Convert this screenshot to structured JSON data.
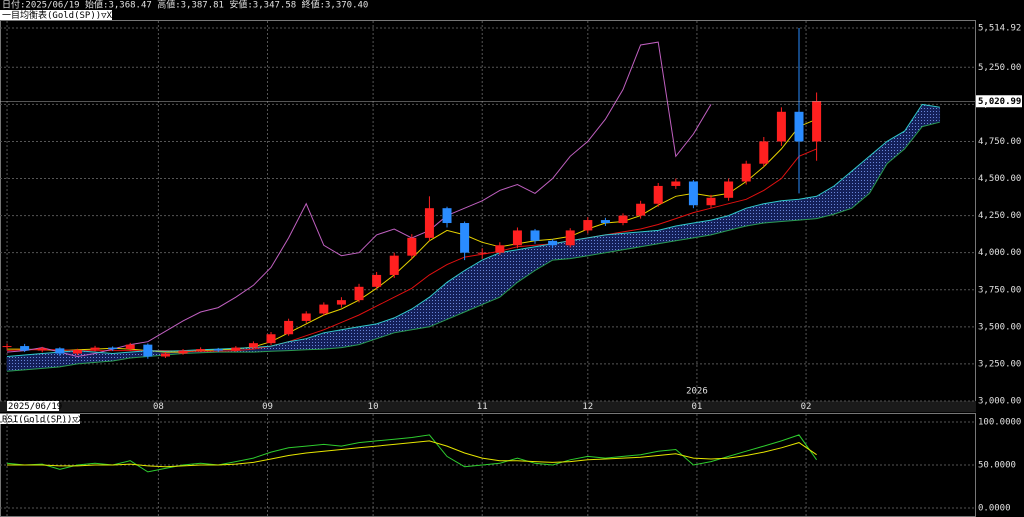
{
  "chart_data": [
    {
      "type": "candlestick",
      "subtitle": "日付:2025/06/19 始値:3,368.47 高値:3,387.81 安値:3,347.58 終値:3,370.40",
      "title": "一目均衡表(Gold(SP))▽X",
      "x_year_label": "2026",
      "up_color": "#ff2020",
      "down_color": "#2a8cff",
      "cloud_color": "#1a2a70",
      "x": [
        0,
        5,
        10,
        15,
        20,
        25,
        30,
        35,
        40,
        45,
        50,
        55,
        60,
        65,
        70,
        75,
        80,
        85,
        90,
        95,
        100,
        105,
        110,
        115,
        120,
        125,
        130,
        135,
        140,
        145,
        150,
        155,
        160,
        165,
        170,
        175,
        180,
        185,
        190,
        195,
        200,
        205,
        210,
        215,
        220,
        225,
        230,
        235,
        240,
        245,
        250,
        255,
        260,
        265
      ],
      "open": [
        3368.47,
        3370.4,
        3340,
        3355,
        3320,
        3345,
        3360,
        3350,
        3380,
        3300,
        3320,
        3340,
        3350,
        3340,
        3360,
        3390,
        3450,
        3540,
        3590,
        3650,
        3680,
        3770,
        3850,
        3980,
        4100,
        4300,
        4200,
        4000,
        4000,
        4050,
        4150,
        4080,
        4050,
        4150,
        4220,
        4200,
        4250,
        4330,
        4450,
        4480,
        4320,
        4370,
        4480,
        4600,
        4750,
        4950,
        4750,
        null,
        null,
        null,
        null,
        null,
        null,
        null
      ],
      "high": [
        3387.81,
        3385,
        3365,
        3362,
        3352,
        3372,
        3368,
        3392,
        3388,
        3330,
        3350,
        3362,
        3358,
        3370,
        3402,
        3465,
        3555,
        3605,
        3665,
        3700,
        3790,
        3870,
        4000,
        4125,
        4380,
        4310,
        4210,
        4030,
        4070,
        4170,
        4160,
        4090,
        4165,
        4240,
        4235,
        4265,
        4350,
        4470,
        4500,
        4490,
        4390,
        4500,
        4620,
        4780,
        4980,
        5514.92,
        5080,
        null,
        null,
        null,
        null,
        null,
        null,
        null
      ],
      "low": [
        3347.58,
        3330,
        3328,
        3305,
        3310,
        3335,
        3338,
        3340,
        3285,
        3290,
        3312,
        3330,
        3330,
        3332,
        3350,
        3378,
        3440,
        3525,
        3575,
        3630,
        3665,
        3755,
        3830,
        3960,
        4080,
        4170,
        3950,
        3960,
        3985,
        4030,
        4060,
        4030,
        4035,
        4130,
        4180,
        4185,
        4230,
        4310,
        4430,
        4300,
        4300,
        4350,
        4460,
        4580,
        4720,
        4400,
        4620,
        null,
        null,
        null,
        null,
        null,
        null,
        null
      ],
      "close": [
        3370.4,
        3340,
        3355,
        3320,
        3345,
        3360,
        3350,
        3380,
        3300,
        3320,
        3340,
        3350,
        3340,
        3360,
        3390,
        3450,
        3540,
        3590,
        3650,
        3680,
        3770,
        3850,
        3980,
        4100,
        4300,
        4200,
        4000,
        4000,
        4050,
        4150,
        4080,
        4050,
        4150,
        4220,
        4200,
        4250,
        4330,
        4450,
        4480,
        4320,
        4370,
        4480,
        4600,
        4750,
        4950,
        4750,
        5020.99,
        null,
        null,
        null,
        null,
        null,
        null,
        null
      ],
      "series": [
        {
          "color": "#e6d200",
          "values": [
            3350,
            3350,
            3345,
            3340,
            3345,
            3350,
            3355,
            3350,
            3340,
            3330,
            3330,
            3340,
            3345,
            3350,
            3365,
            3400,
            3460,
            3520,
            3580,
            3620,
            3680,
            3760,
            3850,
            3960,
            4080,
            4150,
            4120,
            4070,
            4040,
            4060,
            4080,
            4090,
            4110,
            4160,
            4200,
            4210,
            4250,
            4320,
            4380,
            4400,
            4380,
            4400,
            4480,
            4580,
            4700,
            4850,
            4900,
            null,
            null,
            null,
            null,
            null,
            null,
            null
          ]
        },
        {
          "color": "#e01010",
          "values": [
            3340,
            3345,
            3345,
            3345,
            3340,
            3340,
            3340,
            3340,
            3340,
            3340,
            3335,
            3335,
            3335,
            3340,
            3350,
            3370,
            3400,
            3440,
            3480,
            3530,
            3580,
            3640,
            3700,
            3760,
            3850,
            3920,
            3970,
            3990,
            4010,
            4040,
            4050,
            4060,
            4080,
            4100,
            4120,
            4140,
            4160,
            4190,
            4230,
            4270,
            4300,
            4330,
            4360,
            4420,
            4500,
            4650,
            4700,
            null,
            null,
            null,
            null,
            null,
            null,
            null
          ]
        },
        {
          "color": "#c060c0",
          "values": [
            3330,
            3340,
            3360,
            3330,
            3300,
            3320,
            3350,
            3380,
            3400,
            3470,
            3540,
            3600,
            3630,
            3700,
            3780,
            3900,
            4100,
            4330,
            4050,
            3980,
            4000,
            4120,
            4160,
            4100,
            4150,
            4250,
            4300,
            4350,
            4420,
            4460,
            4400,
            4500,
            4650,
            4750,
            4900,
            5100,
            5400,
            5420,
            4650,
            4800,
            5000,
            null,
            null,
            null,
            null,
            null,
            null,
            null,
            null,
            null,
            null,
            null,
            null,
            null
          ]
        },
        {
          "color": "#30c8c8",
          "values": [
            3300,
            3310,
            3320,
            3330,
            3340,
            3330,
            3320,
            3330,
            3340,
            3335,
            3340,
            3345,
            3350,
            3355,
            3360,
            3370,
            3400,
            3420,
            3460,
            3480,
            3500,
            3520,
            3560,
            3620,
            3700,
            3800,
            3880,
            3950,
            4000,
            4020,
            4040,
            4060,
            4080,
            4100,
            4120,
            4130,
            4140,
            4150,
            4180,
            4200,
            4220,
            4250,
            4300,
            4330,
            4350,
            4360,
            4380,
            4450,
            4550,
            4650,
            4750,
            4820,
            5000,
            4980
          ]
        },
        {
          "color": "#2a9a50",
          "values": [
            3200,
            3210,
            3220,
            3230,
            3250,
            3260,
            3270,
            3290,
            3300,
            3310,
            3320,
            3325,
            3330,
            3330,
            3330,
            3335,
            3340,
            3345,
            3350,
            3360,
            3380,
            3420,
            3460,
            3480,
            3500,
            3550,
            3600,
            3650,
            3700,
            3800,
            3880,
            3950,
            3960,
            3980,
            4000,
            4020,
            4040,
            4060,
            4080,
            4100,
            4120,
            4150,
            4180,
            4200,
            4210,
            4220,
            4230,
            4260,
            4300,
            4400,
            4600,
            4700,
            4850,
            4880
          ]
        }
      ],
      "xlim": [
        -2,
        275
      ],
      "xticks": [
        {
          "value": 0,
          "label": "2025/06/19"
        },
        {
          "value": 43,
          "label": "08"
        },
        {
          "value": 74,
          "label": "09"
        },
        {
          "value": 104,
          "label": "10"
        },
        {
          "value": 135,
          "label": "11"
        },
        {
          "value": 165,
          "label": "12"
        },
        {
          "value": 196,
          "label": "01"
        },
        {
          "value": 227,
          "label": "02"
        }
      ],
      "ylim": [
        3000,
        5514.92
      ],
      "yticks": [
        {
          "value": 3000,
          "label": "3,000.00"
        },
        {
          "value": 3250,
          "label": "3,250.00"
        },
        {
          "value": 3500,
          "label": "3,500.00"
        },
        {
          "value": 3750,
          "label": "3,750.00"
        },
        {
          "value": 4000,
          "label": "4,000.00"
        },
        {
          "value": 4250,
          "label": "4,250.00"
        },
        {
          "value": 4500,
          "label": "4,500.00"
        },
        {
          "value": 4750,
          "label": "4,750.00"
        },
        {
          "value": 5000,
          "label": "5,000.00"
        },
        {
          "value": 5250,
          "label": "5,250.00"
        },
        {
          "value": 5514.92,
          "label": "5,514.92"
        }
      ],
      "last_price": {
        "value": 5020.99,
        "label": "5,020.99"
      },
      "grid": true
    },
    {
      "type": "line",
      "title": "RSI(Gold(SP))▽X",
      "x": [
        0,
        5,
        10,
        15,
        20,
        25,
        30,
        35,
        40,
        45,
        50,
        55,
        60,
        65,
        70,
        75,
        80,
        85,
        90,
        95,
        100,
        105,
        110,
        115,
        120,
        125,
        130,
        135,
        140,
        145,
        150,
        155,
        160,
        165,
        170,
        175,
        180,
        185,
        190,
        195,
        200,
        205,
        210,
        215,
        220,
        225,
        230
      ],
      "series": [
        {
          "color": "#2ecc2e",
          "values": [
            52,
            50,
            51,
            45,
            50,
            52,
            50,
            55,
            42,
            46,
            50,
            52,
            50,
            54,
            58,
            65,
            70,
            72,
            74,
            72,
            76,
            78,
            80,
            82,
            85,
            60,
            48,
            50,
            52,
            58,
            52,
            50,
            56,
            60,
            58,
            60,
            62,
            66,
            68,
            50,
            54,
            60,
            66,
            72,
            78,
            85,
            56
          ]
        },
        {
          "color": "#e6e600",
          "values": [
            50,
            50,
            50,
            49,
            49,
            50,
            50,
            51,
            49,
            48,
            49,
            50,
            50,
            51,
            53,
            57,
            61,
            64,
            66,
            68,
            70,
            72,
            74,
            76,
            78,
            72,
            64,
            58,
            55,
            55,
            54,
            53,
            54,
            56,
            57,
            58,
            59,
            61,
            63,
            58,
            57,
            58,
            61,
            65,
            70,
            76,
            62
          ]
        }
      ],
      "xlim": [
        -2,
        275
      ],
      "ylim": [
        0,
        100
      ],
      "yticks": [
        {
          "value": 0,
          "label": "0.0000"
        },
        {
          "value": 50,
          "label": "50.0000"
        },
        {
          "value": 100,
          "label": "100.0000"
        }
      ],
      "grid": true
    }
  ]
}
